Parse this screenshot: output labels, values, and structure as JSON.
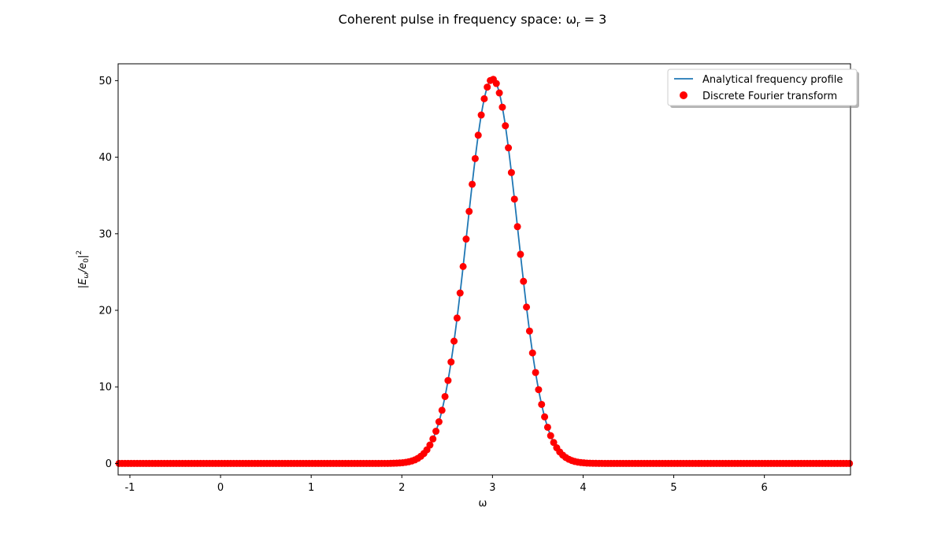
{
  "chart_data": {
    "type": "line",
    "title_prefix": "Coherent pulse in frequency space: ω",
    "title_sub": "r",
    "title_suffix": " = 3",
    "xlabel": "ω",
    "ylabel_parts": {
      "base": "|E",
      "sub": "ω",
      "mid": "/e",
      "sub2": "0",
      "end": "|",
      "sup": "2"
    },
    "xlim": [
      -1.13,
      6.95
    ],
    "ylim": [
      -1.5,
      52.2
    ],
    "xticks": [
      "-1",
      "0",
      "1",
      "2",
      "3",
      "4",
      "5",
      "6"
    ],
    "xtick_values": [
      -1,
      0,
      1,
      2,
      3,
      4,
      5,
      6
    ],
    "yticks": [
      "0",
      "10",
      "20",
      "30",
      "40",
      "50"
    ],
    "ytick_values": [
      0,
      10,
      20,
      30,
      40,
      50
    ],
    "grid": false,
    "legend_placement": "top-right",
    "series": [
      {
        "name": "Analytical frequency profile",
        "kind": "line",
        "color": "#1f77b4",
        "function": "gaussian",
        "amplitude": 50.2,
        "center": 3.0,
        "sigma": 0.28,
        "x_range": [
          -1.13,
          6.95
        ]
      },
      {
        "name": "Discrete Fourier transform",
        "kind": "scatter",
        "color": "#ff0000",
        "function": "gaussian",
        "amplitude": 50.2,
        "center": 3.0,
        "sigma": 0.28,
        "x_start": -1.12,
        "x_step": 0.0333,
        "x_end": 6.95
      }
    ]
  }
}
